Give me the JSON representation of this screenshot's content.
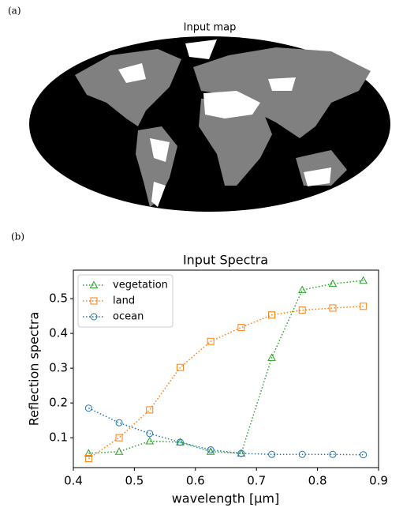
{
  "chart_data": [
    {
      "type": "map",
      "panel_label": "(a)",
      "title": "Input map"
    },
    {
      "type": "line",
      "panel_label": "(b)",
      "title": "Input Spectra",
      "x_label": "wavelength [μm]",
      "y_label": "Reflection spectra",
      "x": [
        0.425,
        0.475,
        0.525,
        0.575,
        0.625,
        0.675,
        0.725,
        0.775,
        0.825,
        0.875
      ],
      "series": [
        {
          "name": "vegetation",
          "color": "#2ca02c",
          "marker": "triangle",
          "values": [
            0.055,
            0.06,
            0.09,
            0.087,
            0.06,
            0.055,
            0.33,
            0.525,
            0.543,
            0.552
          ]
        },
        {
          "name": "land",
          "color": "#ff7f0e",
          "marker": "square",
          "values": [
            0.04,
            0.1,
            0.18,
            0.302,
            0.377,
            0.417,
            0.453,
            0.467,
            0.473,
            0.478
          ]
        },
        {
          "name": "ocean",
          "color": "#1f77b4",
          "marker": "circle",
          "values": [
            0.185,
            0.143,
            0.112,
            0.087,
            0.065,
            0.055,
            0.052,
            0.052,
            0.052,
            0.051
          ]
        }
      ],
      "line_style": "dotted",
      "xlim": [
        0.4,
        0.9
      ],
      "xticks": [
        0.4,
        0.5,
        0.6,
        0.7,
        0.8,
        0.9
      ],
      "ylim": [
        0.014,
        0.582
      ],
      "yticks": [
        0.1,
        0.2,
        0.3,
        0.4,
        0.5
      ],
      "legend": "upper left"
    }
  ]
}
